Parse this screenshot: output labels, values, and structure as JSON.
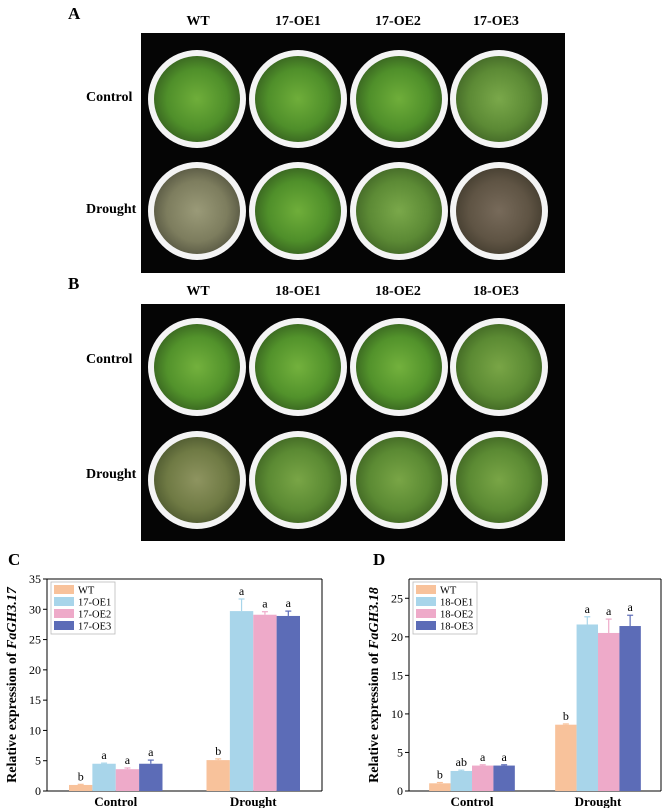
{
  "panelA": {
    "letter": "A",
    "columns": [
      "WT",
      "17-OE1",
      "17-OE2",
      "17-OE3"
    ],
    "rows": [
      "Control",
      "Drought"
    ]
  },
  "panelB": {
    "letter": "B",
    "columns": [
      "WT",
      "18-OE1",
      "18-OE2",
      "18-OE3"
    ],
    "rows": [
      "Control",
      "Drought"
    ]
  },
  "chart_data": [
    {
      "panel": "C",
      "type": "bar",
      "ylabel_prefix": "Relative expression of ",
      "ylabel_gene": "FaGH3.17",
      "categories": [
        "Control",
        "Drought"
      ],
      "ylim": [
        0,
        35
      ],
      "yticks": [
        0,
        5,
        10,
        15,
        20,
        25,
        30,
        35
      ],
      "legend_position": "top-left",
      "series": [
        {
          "name": "WT",
          "color": "#f8c29b",
          "values": [
            1.0,
            5.1
          ],
          "errors": [
            0.1,
            0.2
          ],
          "letters": [
            "b",
            "b"
          ]
        },
        {
          "name": "17-OE1",
          "color": "#a8d5ea",
          "values": [
            4.5,
            29.7
          ],
          "errors": [
            0.1,
            2.0
          ],
          "letters": [
            "a",
            "a"
          ]
        },
        {
          "name": "17-OE2",
          "color": "#eeaac9",
          "values": [
            3.6,
            29.1
          ],
          "errors": [
            0.2,
            0.5
          ],
          "letters": [
            "a",
            "a"
          ]
        },
        {
          "name": "17-OE3",
          "color": "#5c6cb7",
          "values": [
            4.5,
            28.9
          ],
          "errors": [
            0.6,
            0.8
          ],
          "letters": [
            "a",
            "a"
          ]
        }
      ]
    },
    {
      "panel": "D",
      "type": "bar",
      "ylabel_prefix": "Relative expression of ",
      "ylabel_gene": "FaGH3.18",
      "categories": [
        "Control",
        "Drought"
      ],
      "ylim": [
        0,
        27.5
      ],
      "yticks": [
        0,
        5,
        10,
        15,
        20,
        25
      ],
      "legend_position": "top-left",
      "series": [
        {
          "name": "WT",
          "color": "#f8c29b",
          "values": [
            1.0,
            8.6
          ],
          "errors": [
            0.1,
            0.1
          ],
          "letters": [
            "b",
            "b"
          ]
        },
        {
          "name": "18-OE1",
          "color": "#a8d5ea",
          "values": [
            2.6,
            21.6
          ],
          "errors": [
            0.1,
            1.0
          ],
          "letters": [
            "ab",
            "a"
          ]
        },
        {
          "name": "18-OE2",
          "color": "#eeaac9",
          "values": [
            3.3,
            20.5
          ],
          "errors": [
            0.1,
            1.8
          ],
          "letters": [
            "a",
            "a"
          ]
        },
        {
          "name": "18-OE3",
          "color": "#5c6cb7",
          "values": [
            3.3,
            21.4
          ],
          "errors": [
            0.1,
            1.4
          ],
          "letters": [
            "a",
            "a"
          ]
        }
      ]
    }
  ]
}
